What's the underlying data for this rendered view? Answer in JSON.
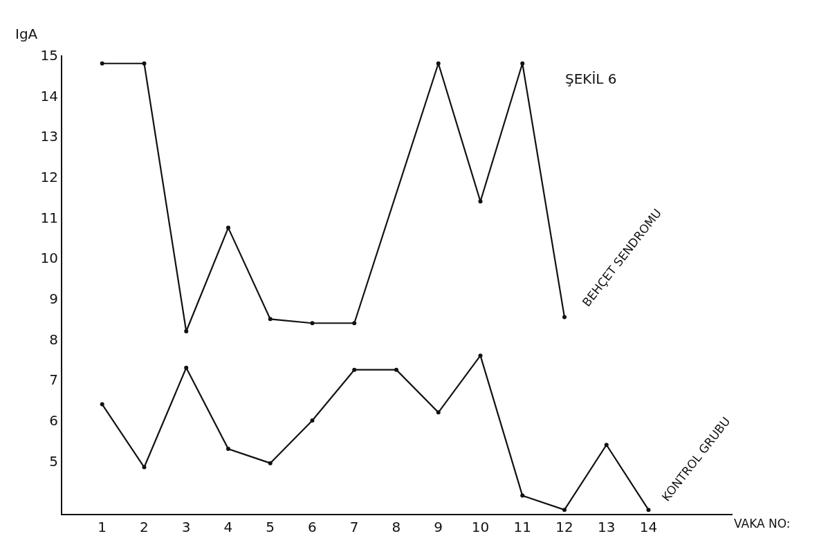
{
  "chart_data": {
    "type": "line",
    "title": "ŞEKİL 6",
    "xlabel": "VAKA NO:",
    "ylabel": "IgA",
    "x": [
      1,
      2,
      3,
      4,
      5,
      6,
      7,
      8,
      9,
      10,
      11,
      12,
      13,
      14
    ],
    "series": [
      {
        "name": "BEHÇET SENDROMU",
        "color": "#111111",
        "x": [
          1,
          2,
          3,
          4,
          5,
          6,
          7,
          9,
          10,
          11,
          12
        ],
        "values": [
          14.8,
          14.8,
          8.2,
          10.75,
          8.5,
          8.4,
          8.4,
          14.8,
          11.4,
          14.8,
          8.55
        ]
      },
      {
        "name": "KONTROL GRUBU",
        "color": "#111111",
        "values": [
          6.4,
          4.85,
          7.3,
          5.3,
          4.95,
          6.0,
          7.25,
          7.25,
          6.2,
          7.6,
          4.15,
          3.8,
          5.4,
          3.8
        ]
      }
    ],
    "xlim": [
      0.05,
      16
    ],
    "ylim": [
      3.7,
      15
    ],
    "xticks": [
      1,
      2,
      3,
      4,
      5,
      6,
      7,
      8,
      9,
      10,
      11,
      12,
      13,
      14
    ],
    "yticks": [
      5,
      6,
      7,
      8,
      9,
      10,
      11,
      12,
      13,
      14,
      15
    ],
    "marker": "circle",
    "line_style": "solid",
    "grid": false,
    "legend": false
  }
}
